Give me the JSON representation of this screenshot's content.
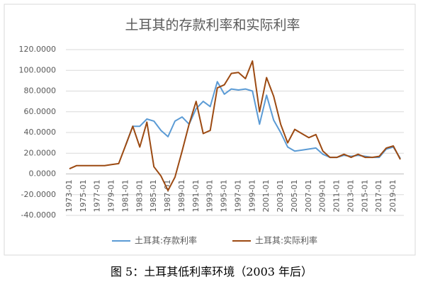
{
  "chart_data": {
    "type": "line",
    "title": "土耳其的存款利率和实际利率",
    "categories": [
      "1973-01",
      null,
      "1975-01",
      null,
      "1977-01",
      null,
      "1979-01",
      null,
      "1981-01",
      null,
      "1983-01",
      null,
      "1985-01",
      null,
      "1987-01",
      null,
      "1989-01",
      null,
      "1991-01",
      null,
      "1993-01",
      null,
      "1995-01",
      null,
      "1997-01",
      null,
      "1999-01",
      null,
      "2001-01",
      null,
      "2003-01",
      null,
      "2005-01",
      null,
      "2007-01",
      null,
      "2009-01",
      null,
      "2011-01",
      null,
      "2013-01",
      null,
      "2015-01",
      null,
      "2017-01",
      null,
      "2019-01",
      null
    ],
    "series": [
      {
        "name": "土耳其:存款利率",
        "color": "#5b9bd5",
        "values": [
          null,
          null,
          null,
          null,
          null,
          null,
          null,
          null,
          28,
          46,
          46,
          53,
          51,
          42,
          36,
          51,
          55,
          48,
          63,
          70,
          65,
          89,
          77,
          82,
          81,
          82,
          80,
          48,
          76,
          52,
          40,
          26,
          22,
          23,
          24,
          25,
          19,
          16,
          16,
          18,
          17,
          18,
          17,
          16,
          16,
          24,
          26,
          15
        ]
      },
      {
        "name": "土耳其:实际利率",
        "color": "#9c4a12",
        "values": [
          5,
          8,
          8,
          8,
          8,
          8,
          9,
          10,
          28,
          46,
          26,
          50,
          7,
          -2,
          -16,
          -3,
          22,
          48,
          70,
          39,
          42,
          83,
          86,
          97,
          98,
          92,
          109,
          60,
          93,
          75,
          48,
          30,
          43,
          39,
          35,
          38,
          22,
          16,
          16,
          19,
          16,
          19,
          16,
          16,
          17,
          25,
          27,
          14
        ]
      }
    ],
    "ylim": [
      -40,
      120
    ],
    "yticks": [
      {
        "value": -40,
        "label": "-40.0000"
      },
      {
        "value": -20,
        "label": "-20.0000"
      },
      {
        "value": 0,
        "label": "0.0000"
      },
      {
        "value": 20,
        "label": "20.0000"
      },
      {
        "value": 40,
        "label": "40.0000"
      },
      {
        "value": 60,
        "label": "60.0000"
      },
      {
        "value": 80,
        "label": "80.0000"
      },
      {
        "value": 100,
        "label": "100.0000"
      },
      {
        "value": 120,
        "label": "120.0000"
      }
    ],
    "grid": true,
    "legend": "bottom"
  },
  "caption": "图 5：土耳其低利率环境（2003 年后）"
}
